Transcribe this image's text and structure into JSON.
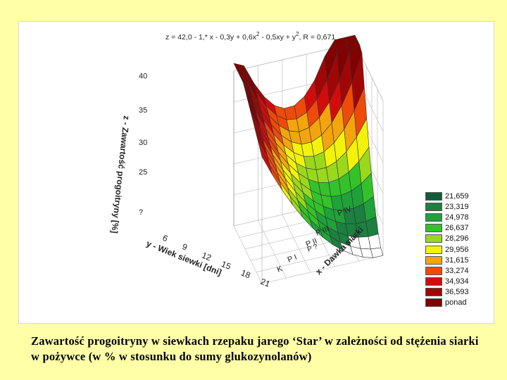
{
  "chart_data": {
    "type": "surface3d",
    "title_prefix": "z = 42,0 - 1,* x - 0,3y + 0,6x",
    "title_mid": " - 0,5xy + y",
    "title_end": ", R = 0,671",
    "title_sup": "2",
    "zlabel": "z - Zawartość progoitryny [%]",
    "ylabel": "y - Wiek siewki [dni]",
    "xlabel": "x - Dawka siarki",
    "z_ticks": [
      "40",
      "35",
      "30",
      "25",
      "?"
    ],
    "y_ticks": [
      "6",
      "9",
      "12",
      "15",
      "18",
      "21"
    ],
    "x_ticks": [
      "K",
      "P I",
      "P II",
      "P III",
      "P IV"
    ],
    "x_extra": "P ?",
    "legend": [
      {
        "label": "21,659",
        "color": "#0d5e38"
      },
      {
        "label": "23,319",
        "color": "#1b8040"
      },
      {
        "label": "24,978",
        "color": "#1fa23a"
      },
      {
        "label": "26,637",
        "color": "#33c22a"
      },
      {
        "label": "28,296",
        "color": "#9ad81c"
      },
      {
        "label": "29,956",
        "color": "#f2f20a"
      },
      {
        "label": "31,615",
        "color": "#f4a40c"
      },
      {
        "label": "33,274",
        "color": "#ee4a0a"
      },
      {
        "label": "34,934",
        "color": "#d20c0c"
      },
      {
        "label": "36,593",
        "color": "#a00606"
      },
      {
        "label": "ponad",
        "color": "#820000"
      }
    ]
  },
  "caption": "Zawartość progoitryny w siewkach rzepaku jarego ‘Star’ w zależności od stężenia siarki w pożywce (w % w stosunku do sumy glukozynolanów)"
}
